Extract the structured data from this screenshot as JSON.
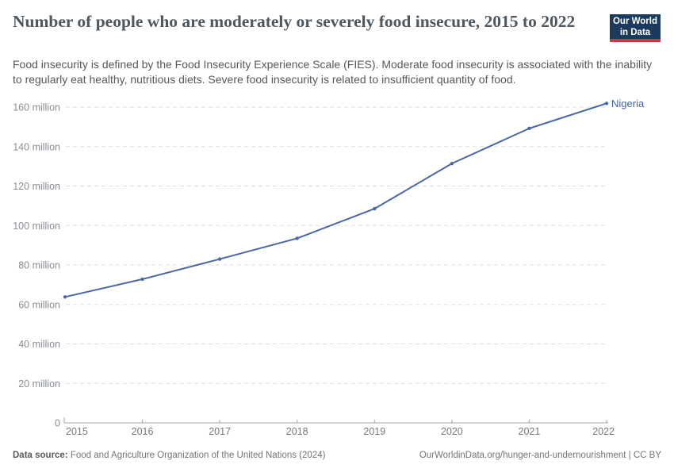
{
  "header": {
    "title": "Number of people who are moderately or severely food insecure, 2015 to 2022",
    "subtitle": "Food insecurity is defined by the Food Insecurity Experience Scale (FIES). Moderate food insecurity is associated with the inability to regularly eat healthy, nutritious diets. Severe food insecurity is related to insufficient quantity of food.",
    "logo": {
      "line1": "Our World",
      "line2": "in Data"
    }
  },
  "chart_data": {
    "type": "line",
    "title": "Number of people who are moderately or severely food insecure, 2015 to 2022",
    "x": [
      2015,
      2016,
      2017,
      2018,
      2019,
      2020,
      2021,
      2022
    ],
    "series": [
      {
        "name": "Nigeria",
        "values": [
          63.8,
          72.8,
          83.0,
          93.5,
          108.5,
          131.4,
          149.2,
          161.9
        ]
      }
    ],
    "unit": "million",
    "ylim": [
      0,
      160
    ],
    "yticks": [
      0,
      20,
      40,
      60,
      80,
      100,
      120,
      140,
      160
    ],
    "ytick_suffix": " million",
    "grid": "horizontal-dashed",
    "legend": "end-of-line-label"
  },
  "footer": {
    "datasource_label": "Data source:",
    "datasource_text": " Food and Agriculture Organization of the United Nations (2024)",
    "link": "OurWorldinData.org/hunger-and-undernourishment",
    "separator": " | ",
    "license": "CC BY"
  },
  "colors": {
    "line": "#4a68a2",
    "entity_label": "#43629c",
    "grid": "#dcdee0",
    "axis": "#a2a6aa",
    "ytick_label": "#888e94",
    "xtick_label": "#73797f",
    "logo_bg": "#1c3a5e",
    "logo_bar": "#c63947"
  }
}
